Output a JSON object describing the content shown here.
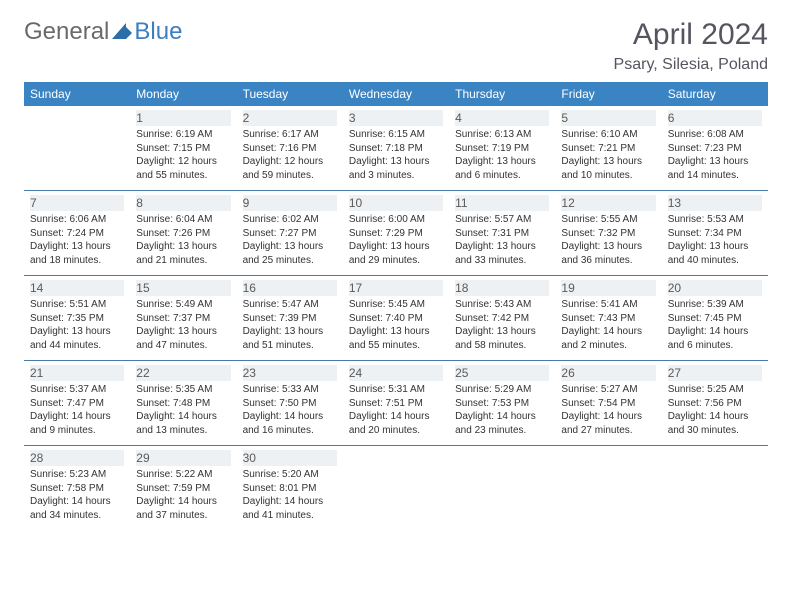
{
  "logo": {
    "text_general": "General",
    "text_blue": "Blue",
    "triangle_color": "#2c6fa8"
  },
  "title": "April 2024",
  "location": "Psary, Silesia, Poland",
  "colors": {
    "header_bg": "#3b84c4",
    "header_text": "#ffffff",
    "border": "#4a7aa8",
    "day_num_bg": "#eef1f3",
    "text": "#333333",
    "title_text": "#555560"
  },
  "weekdays": [
    "Sunday",
    "Monday",
    "Tuesday",
    "Wednesday",
    "Thursday",
    "Friday",
    "Saturday"
  ],
  "weeks": [
    [
      null,
      {
        "num": "1",
        "sunrise": "Sunrise: 6:19 AM",
        "sunset": "Sunset: 7:15 PM",
        "daylight1": "Daylight: 12 hours",
        "daylight2": "and 55 minutes."
      },
      {
        "num": "2",
        "sunrise": "Sunrise: 6:17 AM",
        "sunset": "Sunset: 7:16 PM",
        "daylight1": "Daylight: 12 hours",
        "daylight2": "and 59 minutes."
      },
      {
        "num": "3",
        "sunrise": "Sunrise: 6:15 AM",
        "sunset": "Sunset: 7:18 PM",
        "daylight1": "Daylight: 13 hours",
        "daylight2": "and 3 minutes."
      },
      {
        "num": "4",
        "sunrise": "Sunrise: 6:13 AM",
        "sunset": "Sunset: 7:19 PM",
        "daylight1": "Daylight: 13 hours",
        "daylight2": "and 6 minutes."
      },
      {
        "num": "5",
        "sunrise": "Sunrise: 6:10 AM",
        "sunset": "Sunset: 7:21 PM",
        "daylight1": "Daylight: 13 hours",
        "daylight2": "and 10 minutes."
      },
      {
        "num": "6",
        "sunrise": "Sunrise: 6:08 AM",
        "sunset": "Sunset: 7:23 PM",
        "daylight1": "Daylight: 13 hours",
        "daylight2": "and 14 minutes."
      }
    ],
    [
      {
        "num": "7",
        "sunrise": "Sunrise: 6:06 AM",
        "sunset": "Sunset: 7:24 PM",
        "daylight1": "Daylight: 13 hours",
        "daylight2": "and 18 minutes."
      },
      {
        "num": "8",
        "sunrise": "Sunrise: 6:04 AM",
        "sunset": "Sunset: 7:26 PM",
        "daylight1": "Daylight: 13 hours",
        "daylight2": "and 21 minutes."
      },
      {
        "num": "9",
        "sunrise": "Sunrise: 6:02 AM",
        "sunset": "Sunset: 7:27 PM",
        "daylight1": "Daylight: 13 hours",
        "daylight2": "and 25 minutes."
      },
      {
        "num": "10",
        "sunrise": "Sunrise: 6:00 AM",
        "sunset": "Sunset: 7:29 PM",
        "daylight1": "Daylight: 13 hours",
        "daylight2": "and 29 minutes."
      },
      {
        "num": "11",
        "sunrise": "Sunrise: 5:57 AM",
        "sunset": "Sunset: 7:31 PM",
        "daylight1": "Daylight: 13 hours",
        "daylight2": "and 33 minutes."
      },
      {
        "num": "12",
        "sunrise": "Sunrise: 5:55 AM",
        "sunset": "Sunset: 7:32 PM",
        "daylight1": "Daylight: 13 hours",
        "daylight2": "and 36 minutes."
      },
      {
        "num": "13",
        "sunrise": "Sunrise: 5:53 AM",
        "sunset": "Sunset: 7:34 PM",
        "daylight1": "Daylight: 13 hours",
        "daylight2": "and 40 minutes."
      }
    ],
    [
      {
        "num": "14",
        "sunrise": "Sunrise: 5:51 AM",
        "sunset": "Sunset: 7:35 PM",
        "daylight1": "Daylight: 13 hours",
        "daylight2": "and 44 minutes."
      },
      {
        "num": "15",
        "sunrise": "Sunrise: 5:49 AM",
        "sunset": "Sunset: 7:37 PM",
        "daylight1": "Daylight: 13 hours",
        "daylight2": "and 47 minutes."
      },
      {
        "num": "16",
        "sunrise": "Sunrise: 5:47 AM",
        "sunset": "Sunset: 7:39 PM",
        "daylight1": "Daylight: 13 hours",
        "daylight2": "and 51 minutes."
      },
      {
        "num": "17",
        "sunrise": "Sunrise: 5:45 AM",
        "sunset": "Sunset: 7:40 PM",
        "daylight1": "Daylight: 13 hours",
        "daylight2": "and 55 minutes."
      },
      {
        "num": "18",
        "sunrise": "Sunrise: 5:43 AM",
        "sunset": "Sunset: 7:42 PM",
        "daylight1": "Daylight: 13 hours",
        "daylight2": "and 58 minutes."
      },
      {
        "num": "19",
        "sunrise": "Sunrise: 5:41 AM",
        "sunset": "Sunset: 7:43 PM",
        "daylight1": "Daylight: 14 hours",
        "daylight2": "and 2 minutes."
      },
      {
        "num": "20",
        "sunrise": "Sunrise: 5:39 AM",
        "sunset": "Sunset: 7:45 PM",
        "daylight1": "Daylight: 14 hours",
        "daylight2": "and 6 minutes."
      }
    ],
    [
      {
        "num": "21",
        "sunrise": "Sunrise: 5:37 AM",
        "sunset": "Sunset: 7:47 PM",
        "daylight1": "Daylight: 14 hours",
        "daylight2": "and 9 minutes."
      },
      {
        "num": "22",
        "sunrise": "Sunrise: 5:35 AM",
        "sunset": "Sunset: 7:48 PM",
        "daylight1": "Daylight: 14 hours",
        "daylight2": "and 13 minutes."
      },
      {
        "num": "23",
        "sunrise": "Sunrise: 5:33 AM",
        "sunset": "Sunset: 7:50 PM",
        "daylight1": "Daylight: 14 hours",
        "daylight2": "and 16 minutes."
      },
      {
        "num": "24",
        "sunrise": "Sunrise: 5:31 AM",
        "sunset": "Sunset: 7:51 PM",
        "daylight1": "Daylight: 14 hours",
        "daylight2": "and 20 minutes."
      },
      {
        "num": "25",
        "sunrise": "Sunrise: 5:29 AM",
        "sunset": "Sunset: 7:53 PM",
        "daylight1": "Daylight: 14 hours",
        "daylight2": "and 23 minutes."
      },
      {
        "num": "26",
        "sunrise": "Sunrise: 5:27 AM",
        "sunset": "Sunset: 7:54 PM",
        "daylight1": "Daylight: 14 hours",
        "daylight2": "and 27 minutes."
      },
      {
        "num": "27",
        "sunrise": "Sunrise: 5:25 AM",
        "sunset": "Sunset: 7:56 PM",
        "daylight1": "Daylight: 14 hours",
        "daylight2": "and 30 minutes."
      }
    ],
    [
      {
        "num": "28",
        "sunrise": "Sunrise: 5:23 AM",
        "sunset": "Sunset: 7:58 PM",
        "daylight1": "Daylight: 14 hours",
        "daylight2": "and 34 minutes."
      },
      {
        "num": "29",
        "sunrise": "Sunrise: 5:22 AM",
        "sunset": "Sunset: 7:59 PM",
        "daylight1": "Daylight: 14 hours",
        "daylight2": "and 37 minutes."
      },
      {
        "num": "30",
        "sunrise": "Sunrise: 5:20 AM",
        "sunset": "Sunset: 8:01 PM",
        "daylight1": "Daylight: 14 hours",
        "daylight2": "and 41 minutes."
      },
      null,
      null,
      null,
      null
    ]
  ]
}
